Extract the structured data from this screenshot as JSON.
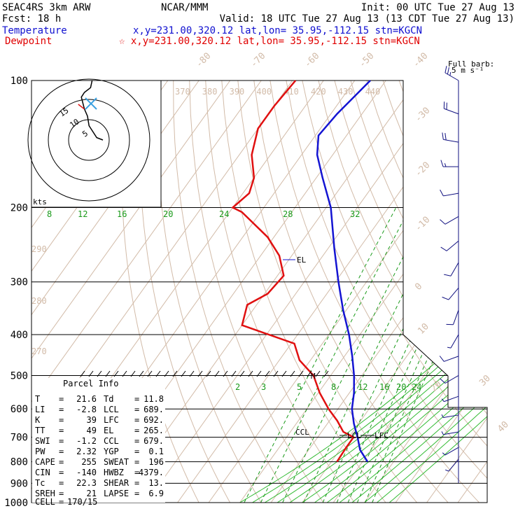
{
  "header": {
    "left1": "SEAC4RS  3km ARW",
    "left2": "Fcst:    18 h",
    "center": "NCAR/MMM",
    "init": "Init: 00 UTC Tue 27 Aug 13",
    "valid": "Valid: 18 UTC Tue 27 Aug 13 (13 CDT Tue 27 Aug 13)",
    "temp_label": "Temperature",
    "temp_info": "x,y=231.00,320.12   lat,lon= 35.95,-112.15  stn=KGCN",
    "dew_label": "Dewpoint",
    "dew_info": "☆ x,y=231.00,320.12   lat,lon= 35.95,-112.15  stn=KGCN"
  },
  "colors": {
    "temperature": "#1414d2",
    "dewpoint": "#e01010",
    "isotherm": "#d2bba8",
    "mixing_ratio": "#1a9a1a",
    "moist_adiabat": "#33bb33",
    "wind": "#101080"
  },
  "barb_legend": {
    "line1": "Full barb:",
    "line2": "5 m s⁻¹"
  },
  "hodograph": {
    "units": "kts",
    "ring_labels": [
      "5",
      "10",
      "15"
    ],
    "trace": [
      [
        0,
        0
      ],
      [
        -4,
        1
      ],
      [
        -9,
        6
      ],
      [
        -10,
        10
      ],
      [
        -12,
        13
      ],
      [
        -14,
        18
      ],
      [
        -12,
        20
      ],
      [
        -8,
        22
      ],
      [
        -7,
        25
      ]
    ],
    "red_segment": [
      [
        -12,
        13
      ],
      [
        -16,
        15
      ]
    ],
    "storm_motion_marker": "x"
  },
  "pressure_levels": [
    100,
    200,
    300,
    400,
    500,
    600,
    700,
    800,
    900,
    1000
  ],
  "pressure_labels": [
    "100",
    "200",
    "300",
    "400",
    "500",
    "600",
    "700",
    "800",
    "900",
    "1000"
  ],
  "isotherm_labels": [
    "-80",
    "-70",
    "-60",
    "-50",
    "-40",
    "-30",
    "-20",
    "-10",
    "0",
    "10",
    "20",
    "30",
    "40"
  ],
  "theta_labels_top": [
    "370",
    "380",
    "390",
    "400",
    "410",
    "420",
    "430",
    "440"
  ],
  "theta_labels_side": [
    "290",
    "280",
    "270"
  ],
  "mixing_ratio_labels_upper": [
    "8",
    "12",
    "16",
    "20",
    "24",
    "28",
    "32"
  ],
  "mixing_ratio_labels_lower": [
    "2",
    "3",
    "5",
    "8",
    "12",
    "16",
    "20",
    "24"
  ],
  "level_markers": {
    "el": "EL",
    "ccl": "CCL",
    "lcl": "LCL",
    "lfc": "LFC",
    "m": "M"
  },
  "parcel_info": {
    "title": "Parcel Info",
    "rows": [
      {
        "k1": "T",
        "v1": "21.6",
        "k2": "Td",
        "v2": "11.8"
      },
      {
        "k1": "LI",
        "v1": "-2.8",
        "k2": "LCL",
        "v2": "689."
      },
      {
        "k1": "K",
        "v1": "39",
        "k2": "LFC",
        "v2": "692."
      },
      {
        "k1": "TT",
        "v1": "49",
        "k2": "EL",
        "v2": "265."
      },
      {
        "k1": "SWI",
        "v1": "-1.2",
        "k2": "CCL",
        "v2": "679."
      },
      {
        "k1": "PW",
        "v1": "2.32",
        "k2": "YGP",
        "v2": "0.1"
      },
      {
        "k1": "CAPE",
        "v1": "255",
        "k2": "SWEAT",
        "v2": "196"
      },
      {
        "k1": "CIN",
        "v1": "-140",
        "k2": "HWBZ",
        "v2": "4379."
      },
      {
        "k1": "Tc",
        "v1": "22.3",
        "k2": "SHEAR",
        "v2": "13."
      },
      {
        "k1": "SREH",
        "v1": "21",
        "k2": "LAPSE",
        "v2": "6.9"
      }
    ],
    "cell_label": "CELL",
    "cell_value": "170/15"
  },
  "chart_data": {
    "type": "line",
    "x_unit": "°C (skewed)",
    "y_unit": "hPa",
    "ylim": [
      1000,
      100
    ],
    "series": [
      {
        "name": "Temperature",
        "color": "#1414d2",
        "points": [
          [
            21.6,
            800
          ],
          [
            16.5,
            750
          ],
          [
            12.8,
            700
          ],
          [
            8.5,
            650
          ],
          [
            4.5,
            600
          ],
          [
            1.5,
            550
          ],
          [
            -2.5,
            500
          ],
          [
            -7.5,
            450
          ],
          [
            -13.5,
            400
          ],
          [
            -21,
            350
          ],
          [
            -29,
            300
          ],
          [
            -38,
            250
          ],
          [
            -48.5,
            200
          ],
          [
            -58,
            170
          ],
          [
            -65,
            150
          ],
          [
            -69,
            135
          ],
          [
            -68,
            120
          ],
          [
            -65,
            100
          ]
        ]
      },
      {
        "name": "Dewpoint",
        "color": "#e01010",
        "points": [
          [
            11.8,
            800
          ],
          [
            11.5,
            740
          ],
          [
            11.5,
            700
          ],
          [
            7.0,
            680
          ],
          [
            2.5,
            640
          ],
          [
            -3,
            600
          ],
          [
            -9.5,
            550
          ],
          [
            -15.5,
            500
          ],
          [
            -23.5,
            460
          ],
          [
            -29,
            420
          ],
          [
            -50,
            380
          ],
          [
            -53,
            340
          ],
          [
            -49,
            320
          ],
          [
            -48,
            290
          ],
          [
            -54,
            260
          ],
          [
            -62,
            235
          ],
          [
            -76,
            205
          ],
          [
            -80,
            200
          ],
          [
            -78,
            185
          ],
          [
            -80,
            170
          ],
          [
            -86,
            150
          ],
          [
            -90,
            130
          ],
          [
            -90,
            115
          ],
          [
            -89,
            100
          ]
        ]
      }
    ],
    "winds": [
      {
        "p": 100,
        "dir": 300,
        "spd": 25
      },
      {
        "p": 120,
        "dir": 290,
        "spd": 20
      },
      {
        "p": 140,
        "dir": 280,
        "spd": 18
      },
      {
        "p": 160,
        "dir": 270,
        "spd": 15
      },
      {
        "p": 185,
        "dir": 260,
        "spd": 10
      },
      {
        "p": 210,
        "dir": 240,
        "spd": 8
      },
      {
        "p": 240,
        "dir": 230,
        "spd": 8
      },
      {
        "p": 270,
        "dir": 210,
        "spd": 10
      },
      {
        "p": 310,
        "dir": 220,
        "spd": 10
      },
      {
        "p": 350,
        "dir": 200,
        "spd": 10
      },
      {
        "p": 400,
        "dir": 210,
        "spd": 5
      },
      {
        "p": 450,
        "dir": 250,
        "spd": 10
      },
      {
        "p": 500,
        "dir": 240,
        "spd": 10
      },
      {
        "p": 560,
        "dir": 250,
        "spd": 5
      },
      {
        "p": 620,
        "dir": 260,
        "spd": 5
      },
      {
        "p": 680,
        "dir": 260,
        "spd": 5
      },
      {
        "p": 740,
        "dir": 240,
        "spd": 5
      },
      {
        "p": 790,
        "dir": 220,
        "spd": 5
      }
    ]
  }
}
